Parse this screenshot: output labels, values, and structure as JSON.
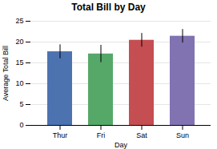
{
  "chart_data": {
    "type": "bar",
    "title": "Total Bill by Day",
    "xlabel": "Day",
    "ylabel": "Average Total Bill",
    "categories": [
      "Thur",
      "Fri",
      "Sat",
      "Sun"
    ],
    "values": [
      17.68,
      17.15,
      20.44,
      21.41
    ],
    "errors": [
      1.67,
      2.08,
      1.64,
      1.62
    ],
    "colors": [
      "#4c72b0",
      "#55a868",
      "#c44e52",
      "#8172b2"
    ],
    "ylim": [
      0,
      25
    ],
    "yticks": [
      0,
      5,
      10,
      15,
      20,
      25
    ],
    "grid": true
  }
}
